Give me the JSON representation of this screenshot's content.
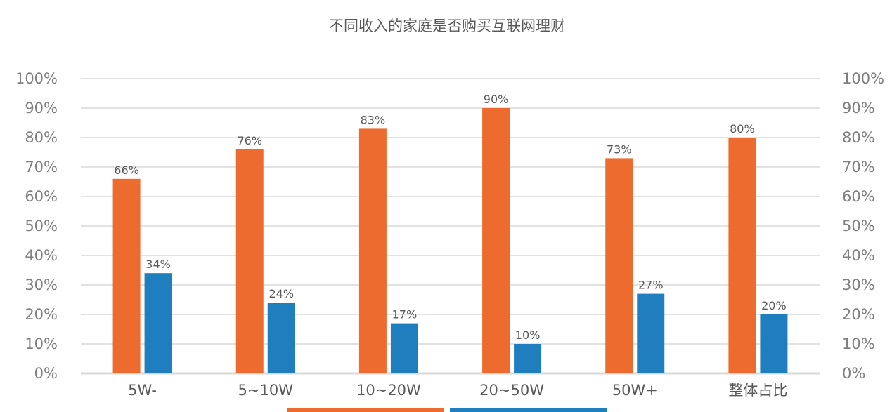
{
  "chart_data": {
    "type": "bar",
    "title": "不同收入的家庭是否购买互联网理财",
    "categories": [
      "5W-",
      "5~10W",
      "10~20W",
      "20~50W",
      "50W+",
      "整体占比"
    ],
    "series": [
      {
        "values": [
          66,
          76,
          83,
          90,
          73,
          80
        ],
        "labels": [
          "66%",
          "76%",
          "83%",
          "90%",
          "73%",
          "80%"
        ]
      },
      {
        "values": [
          34,
          24,
          17,
          10,
          27,
          20
        ],
        "labels": [
          "34%",
          "24%",
          "17%",
          "10%",
          "27%",
          "20%"
        ]
      }
    ],
    "y_ticks": [
      "0%",
      "10%",
      "20%",
      "30%",
      "40%",
      "50%",
      "60%",
      "70%",
      "80%",
      "90%",
      "100%"
    ],
    "ylim": [
      0,
      100
    ],
    "grid": true,
    "legend_position": "bottom",
    "colors": [
      "#EE6B2F",
      "#1F7EBD"
    ],
    "grid_color": "#d9d9d9",
    "axis_color": "#d9d9d9"
  }
}
